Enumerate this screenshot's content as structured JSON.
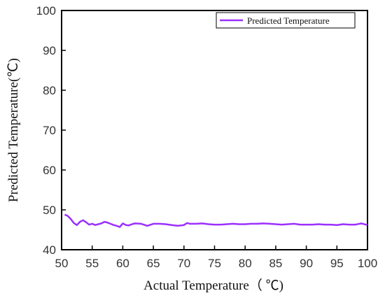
{
  "chart_data": {
    "type": "line",
    "xlabel": "Actual Temperature（ ℃)",
    "ylabel": "Predicted Temperature(℃)",
    "xlim": [
      50,
      100
    ],
    "ylim": [
      40,
      100
    ],
    "xticks": [
      50,
      55,
      60,
      65,
      70,
      75,
      80,
      85,
      90,
      95,
      100
    ],
    "yticks": [
      40,
      50,
      60,
      70,
      80,
      90,
      100
    ],
    "grid": false,
    "legend": {
      "position": "top-right"
    },
    "series": [
      {
        "name": "Predicted Temperature",
        "color": "#9b30ff",
        "x": [
          50.5,
          51,
          51.5,
          52,
          52.5,
          53,
          53.5,
          54,
          54.5,
          55,
          55.5,
          56,
          56.5,
          57,
          57.5,
          58,
          58.5,
          59,
          59.5,
          60,
          60.5,
          61,
          61.5,
          62,
          63,
          64,
          65,
          66,
          67,
          68,
          69,
          70,
          70.5,
          71,
          72,
          73,
          74,
          75,
          76,
          77,
          78,
          79,
          80,
          81,
          82,
          83,
          84,
          85,
          86,
          87,
          88,
          89,
          90,
          91,
          92,
          93,
          94,
          95,
          96,
          97,
          98,
          99,
          100
        ],
        "y": [
          48.8,
          48.5,
          47.7,
          46.7,
          46.2,
          47.0,
          47.4,
          46.9,
          46.3,
          46.5,
          46.2,
          46.4,
          46.6,
          47.0,
          46.8,
          46.5,
          46.2,
          46.0,
          45.7,
          46.6,
          46.2,
          46.1,
          46.4,
          46.6,
          46.5,
          46.0,
          46.5,
          46.5,
          46.4,
          46.2,
          46.0,
          46.2,
          46.7,
          46.5,
          46.5,
          46.6,
          46.4,
          46.3,
          46.3,
          46.4,
          46.5,
          46.4,
          46.4,
          46.5,
          46.5,
          46.6,
          46.5,
          46.4,
          46.3,
          46.4,
          46.5,
          46.3,
          46.3,
          46.3,
          46.4,
          46.3,
          46.3,
          46.2,
          46.4,
          46.3,
          46.3,
          46.6,
          46.2
        ]
      }
    ]
  }
}
